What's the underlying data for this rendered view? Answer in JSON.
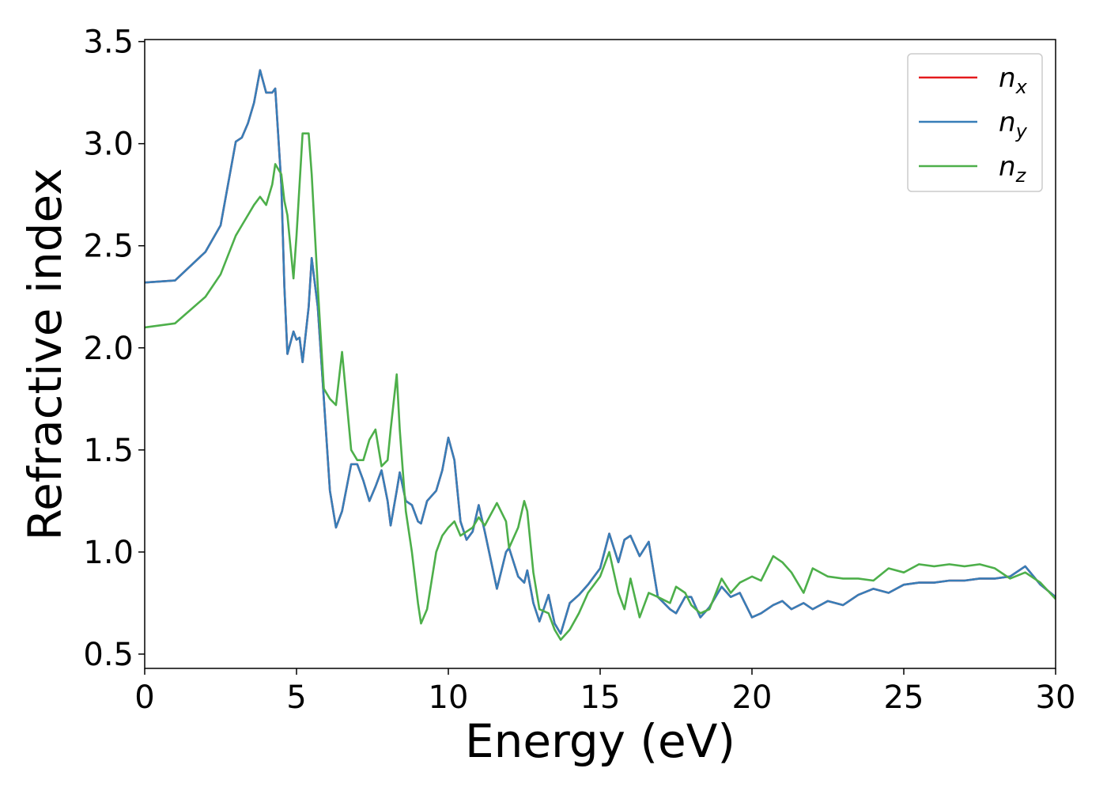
{
  "chart_data": {
    "type": "line",
    "xlabel": "Energy (eV)",
    "ylabel": "Refractive index",
    "x": [
      0,
      1,
      2,
      2.5,
      3,
      3.2,
      3.4,
      3.6,
      3.8,
      4,
      4.2,
      4.3,
      4.5,
      4.6,
      4.7,
      4.9,
      5,
      5.1,
      5.2,
      5.4,
      5.5,
      5.7,
      5.9,
      6.1,
      6.3,
      6.5,
      6.8,
      7,
      7.2,
      7.4,
      7.6,
      7.8,
      8,
      8.1,
      8.3,
      8.4,
      8.6,
      8.8,
      9,
      9.1,
      9.3,
      9.6,
      9.8,
      10,
      10.2,
      10.4,
      10.6,
      10.8,
      11,
      11.2,
      11.6,
      11.9,
      12,
      12.3,
      12.5,
      12.6,
      12.8,
      13,
      13.3,
      13.5,
      13.7,
      14,
      14.3,
      14.6,
      15,
      15.3,
      15.6,
      15.8,
      16,
      16.3,
      16.6,
      16.9,
      17.3,
      17.5,
      17.8,
      18,
      18.3,
      18.6,
      19,
      19.3,
      19.6,
      20,
      20.3,
      20.7,
      21,
      21.3,
      21.7,
      22,
      22.5,
      23,
      23.5,
      24,
      24.5,
      25,
      25.5,
      26,
      26.5,
      27,
      27.5,
      28,
      28.5,
      29,
      29.5,
      30
    ],
    "series": [
      {
        "name": "nx",
        "color": "#e41a1c",
        "values": [
          2.32,
          2.33,
          2.47,
          2.6,
          3.01,
          3.03,
          3.1,
          3.2,
          3.36,
          3.25,
          3.25,
          3.27,
          2.8,
          2.3,
          1.97,
          2.08,
          2.04,
          2.05,
          1.93,
          2.2,
          2.44,
          2.2,
          1.75,
          1.3,
          1.12,
          1.2,
          1.43,
          1.43,
          1.35,
          1.25,
          1.32,
          1.4,
          1.25,
          1.13,
          1.3,
          1.39,
          1.25,
          1.23,
          1.15,
          1.14,
          1.25,
          1.3,
          1.4,
          1.56,
          1.45,
          1.15,
          1.06,
          1.1,
          1.23,
          1.1,
          0.82,
          1.0,
          1.02,
          0.88,
          0.85,
          0.91,
          0.75,
          0.66,
          0.79,
          0.65,
          0.6,
          0.75,
          0.79,
          0.84,
          0.92,
          1.09,
          0.95,
          1.06,
          1.08,
          0.98,
          1.05,
          0.78,
          0.72,
          0.7,
          0.78,
          0.78,
          0.68,
          0.73,
          0.83,
          0.78,
          0.8,
          0.68,
          0.7,
          0.74,
          0.76,
          0.72,
          0.75,
          0.72,
          0.76,
          0.74,
          0.79,
          0.82,
          0.8,
          0.84,
          0.85,
          0.85,
          0.86,
          0.86,
          0.87,
          0.87,
          0.88,
          0.93,
          0.84,
          0.78
        ]
      },
      {
        "name": "ny",
        "color": "#377eb8",
        "values": [
          2.32,
          2.33,
          2.47,
          2.6,
          3.01,
          3.03,
          3.1,
          3.2,
          3.36,
          3.25,
          3.25,
          3.27,
          2.8,
          2.3,
          1.97,
          2.08,
          2.04,
          2.05,
          1.93,
          2.2,
          2.44,
          2.2,
          1.75,
          1.3,
          1.12,
          1.2,
          1.43,
          1.43,
          1.35,
          1.25,
          1.32,
          1.4,
          1.25,
          1.13,
          1.3,
          1.39,
          1.25,
          1.23,
          1.15,
          1.14,
          1.25,
          1.3,
          1.4,
          1.56,
          1.45,
          1.15,
          1.06,
          1.1,
          1.23,
          1.1,
          0.82,
          1.0,
          1.02,
          0.88,
          0.85,
          0.91,
          0.75,
          0.66,
          0.79,
          0.65,
          0.6,
          0.75,
          0.79,
          0.84,
          0.92,
          1.09,
          0.95,
          1.06,
          1.08,
          0.98,
          1.05,
          0.78,
          0.72,
          0.7,
          0.78,
          0.78,
          0.68,
          0.73,
          0.83,
          0.78,
          0.8,
          0.68,
          0.7,
          0.74,
          0.76,
          0.72,
          0.75,
          0.72,
          0.76,
          0.74,
          0.79,
          0.82,
          0.8,
          0.84,
          0.85,
          0.85,
          0.86,
          0.86,
          0.87,
          0.87,
          0.88,
          0.93,
          0.84,
          0.78
        ]
      },
      {
        "name": "nz",
        "color": "#4daf4a",
        "values": [
          2.1,
          2.12,
          2.25,
          2.36,
          2.55,
          2.6,
          2.65,
          2.7,
          2.74,
          2.7,
          2.8,
          2.9,
          2.85,
          2.72,
          2.65,
          2.34,
          2.55,
          2.8,
          3.05,
          3.05,
          2.85,
          2.3,
          1.8,
          1.75,
          1.72,
          1.98,
          1.5,
          1.45,
          1.45,
          1.55,
          1.6,
          1.42,
          1.45,
          1.6,
          1.87,
          1.6,
          1.2,
          1.0,
          0.75,
          0.65,
          0.72,
          1.0,
          1.08,
          1.12,
          1.15,
          1.08,
          1.1,
          1.12,
          1.17,
          1.13,
          1.24,
          1.15,
          1.02,
          1.12,
          1.25,
          1.2,
          0.9,
          0.72,
          0.7,
          0.62,
          0.57,
          0.62,
          0.7,
          0.8,
          0.88,
          1.0,
          0.8,
          0.72,
          0.87,
          0.68,
          0.8,
          0.78,
          0.75,
          0.83,
          0.8,
          0.74,
          0.7,
          0.72,
          0.87,
          0.8,
          0.85,
          0.88,
          0.86,
          0.98,
          0.95,
          0.9,
          0.8,
          0.92,
          0.88,
          0.87,
          0.87,
          0.86,
          0.92,
          0.9,
          0.94,
          0.93,
          0.94,
          0.93,
          0.94,
          0.92,
          0.87,
          0.9,
          0.85,
          0.77
        ]
      }
    ],
    "xlim": [
      0,
      30
    ],
    "xticks": [
      0,
      5,
      10,
      15,
      20,
      25,
      30
    ],
    "ylim": [
      0.43,
      3.51
    ],
    "yticks": [
      0.5,
      {
        "value": 1,
        "label": "1.0"
      },
      1.5,
      {
        "value": 2,
        "label": "2.0"
      },
      2.5,
      {
        "value": 3,
        "label": "3.0"
      },
      3.5
    ],
    "grid": false,
    "legend": "upper right"
  }
}
